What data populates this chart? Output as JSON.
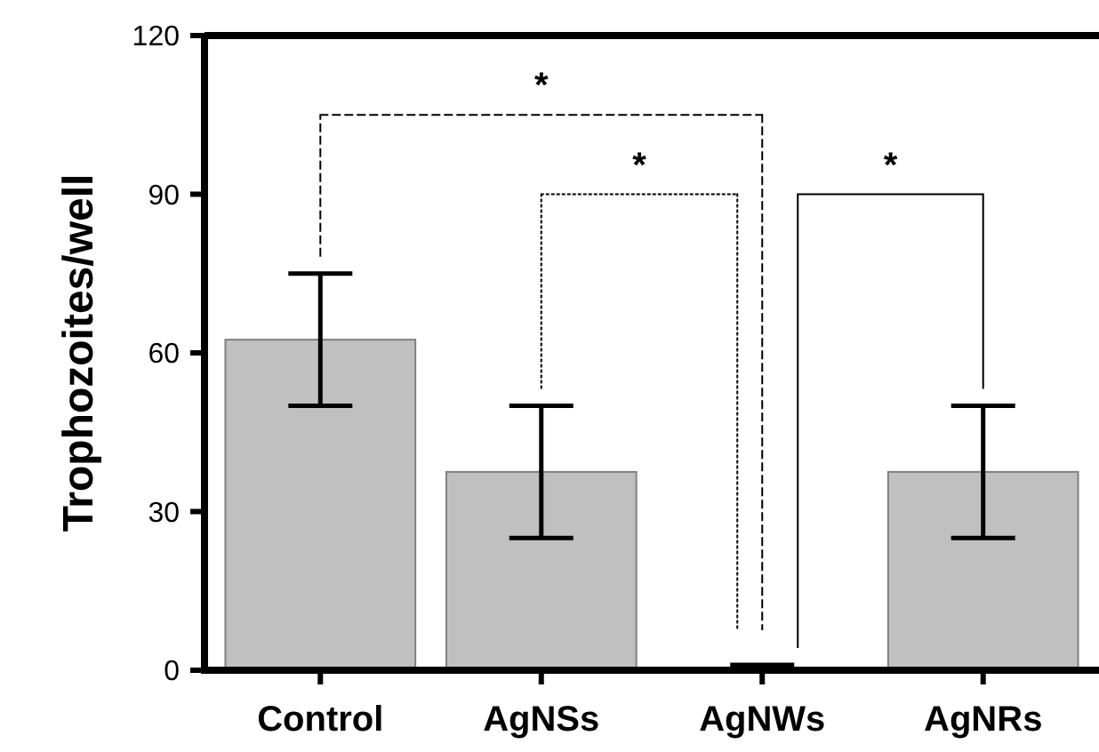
{
  "chart_data": {
    "type": "bar",
    "ylabel": "Trophozoites/well",
    "categories": [
      "Control",
      "AgNSs",
      "AgNWs",
      "AgNRs"
    ],
    "values": [
      62.5,
      37.5,
      0.5,
      37.5
    ],
    "errors": [
      12.5,
      12.5,
      0.5,
      12.5
    ],
    "color": "#c0c0c0",
    "ylim": [
      0,
      120
    ],
    "yticks": [
      0,
      30,
      60,
      90,
      120
    ],
    "grid": false,
    "annotations": [
      "*",
      "*",
      "*"
    ]
  }
}
